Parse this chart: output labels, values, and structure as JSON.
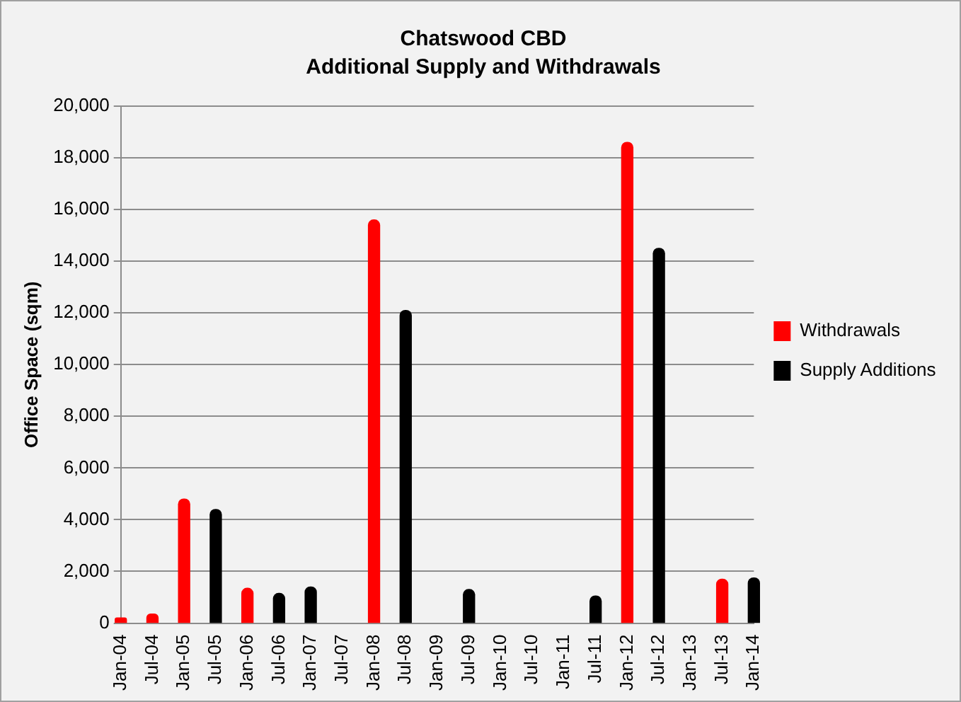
{
  "chart_data": {
    "type": "bar",
    "title": "Chatswood CBD",
    "subtitle": "Additional Supply and Withdrawals",
    "ylabel": "Office Space (sqm)",
    "categories": [
      "Jan-04",
      "Jul-04",
      "Jan-05",
      "Jul-05",
      "Jan-06",
      "Jul-06",
      "Jan-07",
      "Jul-07",
      "Jan-08",
      "Jul-08",
      "Jan-09",
      "Jul-09",
      "Jan-10",
      "Jul-10",
      "Jan-11",
      "Jul-11",
      "Jan-12",
      "Jul-12",
      "Jan-13",
      "Jul-13",
      "Jan-14"
    ],
    "series": [
      {
        "name": "Withdrawals",
        "color": "#ff0000",
        "values": [
          200,
          350,
          4800,
          null,
          1350,
          null,
          null,
          null,
          15600,
          null,
          null,
          null,
          null,
          null,
          null,
          null,
          18600,
          null,
          null,
          1700,
          null
        ]
      },
      {
        "name": "Supply Additions",
        "color": "#000000",
        "values": [
          null,
          null,
          null,
          4400,
          null,
          1150,
          1400,
          null,
          null,
          12100,
          null,
          1300,
          null,
          null,
          null,
          1050,
          null,
          14500,
          null,
          null,
          1750
        ]
      }
    ],
    "ylim": [
      0,
      20000
    ],
    "yticks": [
      0,
      {
        "value": 2000,
        "label": "2,000"
      },
      {
        "value": 4000,
        "label": "4,000"
      },
      {
        "value": 6000,
        "label": "6,000"
      },
      {
        "value": 8000,
        "label": "8,000"
      },
      {
        "value": 10000,
        "label": "10,000"
      },
      {
        "value": 12000,
        "label": "12,000"
      },
      {
        "value": 14000,
        "label": "14,000"
      },
      {
        "value": 16000,
        "label": "16,000"
      },
      {
        "value": 18000,
        "label": "18,000"
      },
      {
        "value": 20000,
        "label": "20,000"
      }
    ],
    "grid": "y",
    "legend": "right"
  }
}
